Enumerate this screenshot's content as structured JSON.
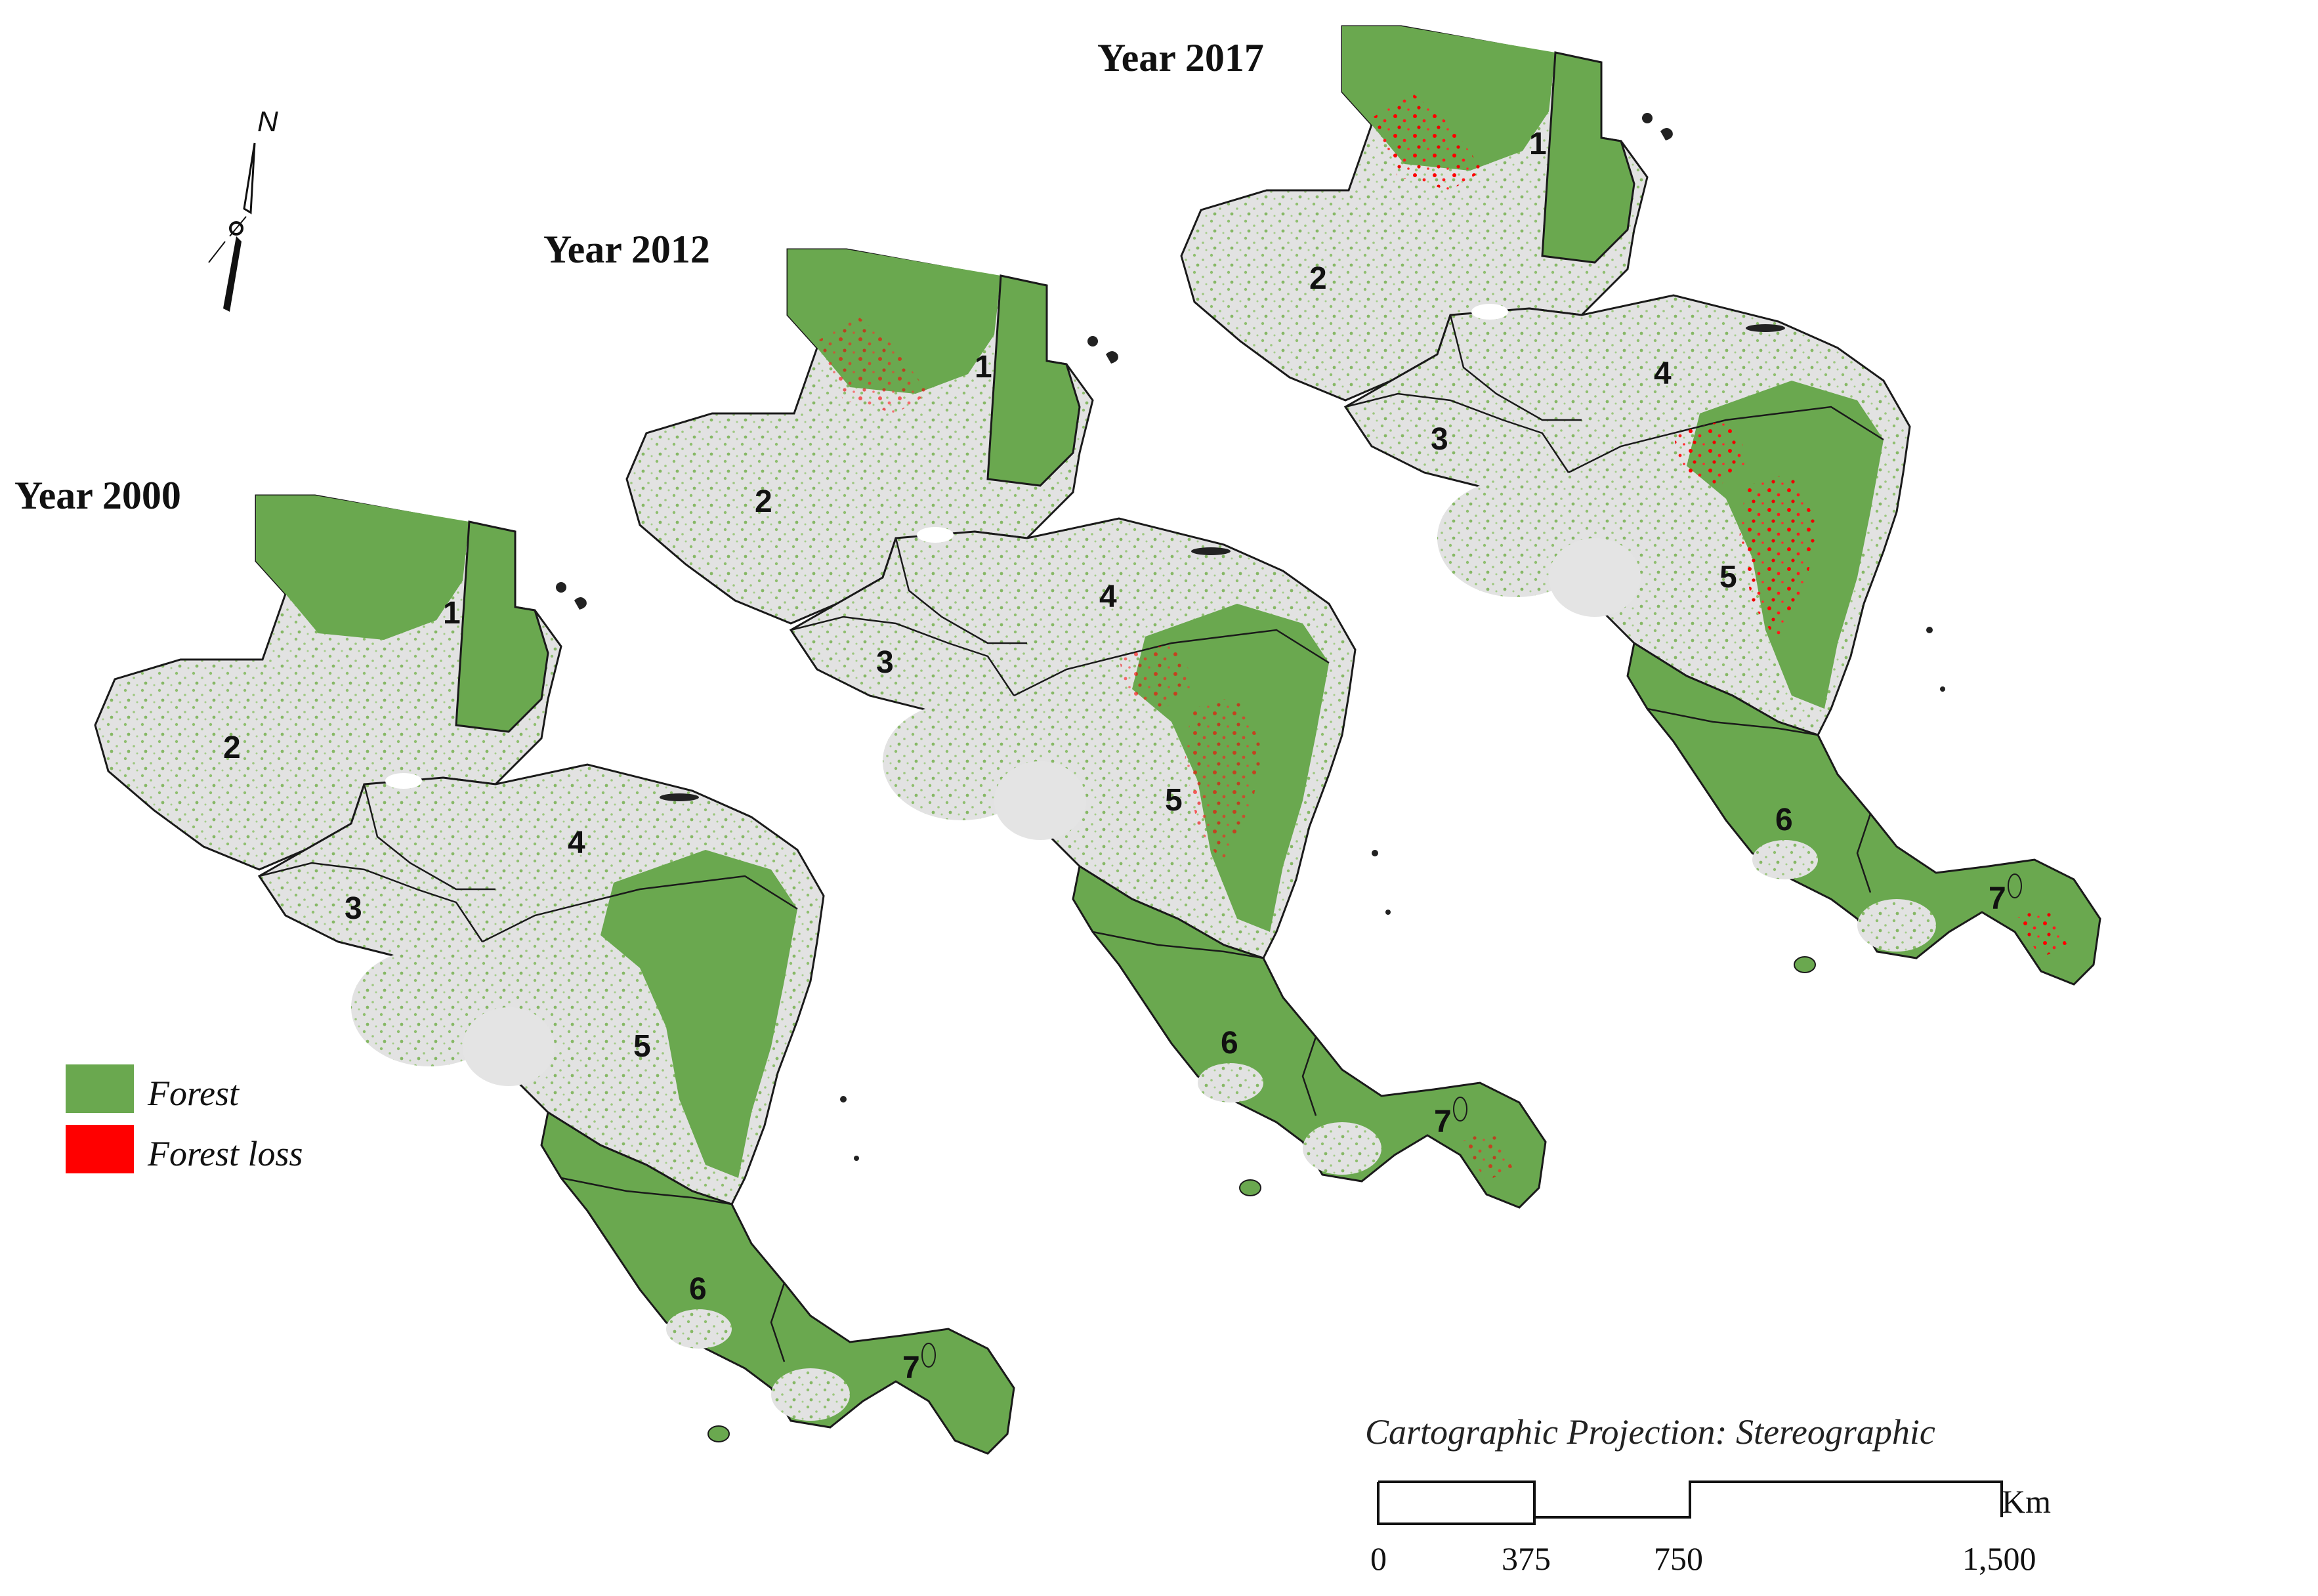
{
  "colors": {
    "forest": "#6aa84f",
    "forest_loss": "#ff0000",
    "non_forest": "#e3e3e3",
    "border": "#1a1a1a"
  },
  "north_arrow": {
    "letter": "N",
    "icon": "north-arrow-icon"
  },
  "maps": [
    {
      "id": "y2000",
      "title": "Year 2000",
      "regions": [
        "1",
        "2",
        "3",
        "4",
        "5",
        "6",
        "7"
      ],
      "loss_level": 0
    },
    {
      "id": "y2012",
      "title": "Year 2012",
      "regions": [
        "1",
        "2",
        "3",
        "4",
        "5",
        "6",
        "7"
      ],
      "loss_level": 0.6
    },
    {
      "id": "y2017",
      "title": "Year 2017",
      "regions": [
        "1",
        "2",
        "3",
        "4",
        "5",
        "6",
        "7"
      ],
      "loss_level": 1
    }
  ],
  "legend": {
    "items": [
      {
        "label": "Forest",
        "color": "#6aa84f"
      },
      {
        "label": "Forest loss",
        "color": "#ff0000"
      }
    ]
  },
  "projection": "Cartographic Projection: Stereographic",
  "scale_bar": {
    "ticks": [
      "0",
      "375",
      "750",
      "1,500"
    ],
    "unit": "Km"
  }
}
